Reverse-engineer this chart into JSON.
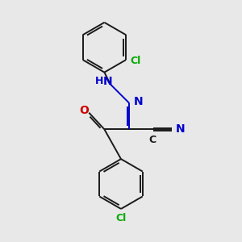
{
  "bg_color": "#e8e8e8",
  "bond_color": "#1a1a1a",
  "N_color": "#0000cc",
  "O_color": "#cc0000",
  "Cl_color": "#00aa00",
  "lw": 1.4,
  "fig_w": 3.0,
  "fig_h": 3.0,
  "dpi": 100,
  "xlim": [
    0,
    10
  ],
  "ylim": [
    0,
    10
  ]
}
